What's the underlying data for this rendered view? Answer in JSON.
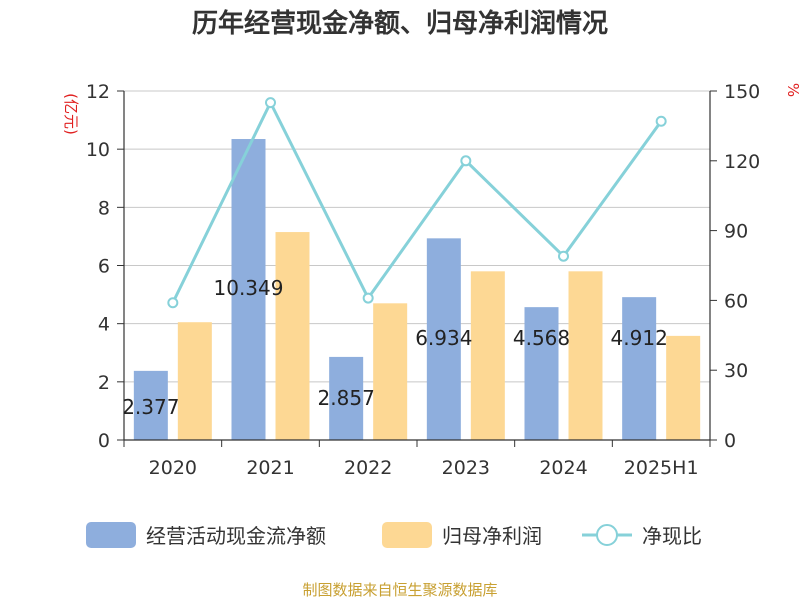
{
  "title": "历年经营现金净额、归母净利润情况",
  "source": "制图数据来自恒生聚源数据库",
  "y_left_unit": "(亿元)",
  "y_right_unit": "%",
  "colors": {
    "bar1": "#8eaedd",
    "bar2": "#fdd894",
    "line": "#86d1d9",
    "grid": "#c8c8c8",
    "axis": "#333333"
  },
  "chart_data": {
    "type": "bar",
    "categories": [
      "2020",
      "2021",
      "2022",
      "2023",
      "2024",
      "2025H1"
    ],
    "series": [
      {
        "name": "经营活动现金流净额",
        "type": "bar",
        "axis": "left",
        "values": [
          2.377,
          10.349,
          2.857,
          6.934,
          4.568,
          4.912
        ],
        "labels": [
          "2.377",
          "10.349",
          "2.857",
          "6.934",
          "4.568",
          "4.912"
        ]
      },
      {
        "name": "归母净利润",
        "type": "bar",
        "axis": "left",
        "values": [
          4.05,
          7.15,
          4.7,
          5.8,
          5.8,
          3.58
        ]
      },
      {
        "name": "净现比",
        "type": "line",
        "axis": "right",
        "values": [
          59,
          145,
          61,
          120,
          79,
          137
        ]
      }
    ],
    "y_left": {
      "min": 0,
      "max": 12,
      "ticks": [
        0,
        2,
        4,
        6,
        8,
        10,
        12
      ]
    },
    "y_right": {
      "min": 0,
      "max": 150,
      "ticks": [
        0,
        30,
        60,
        90,
        120,
        150
      ]
    },
    "grid": true,
    "legend_position": "bottom"
  }
}
